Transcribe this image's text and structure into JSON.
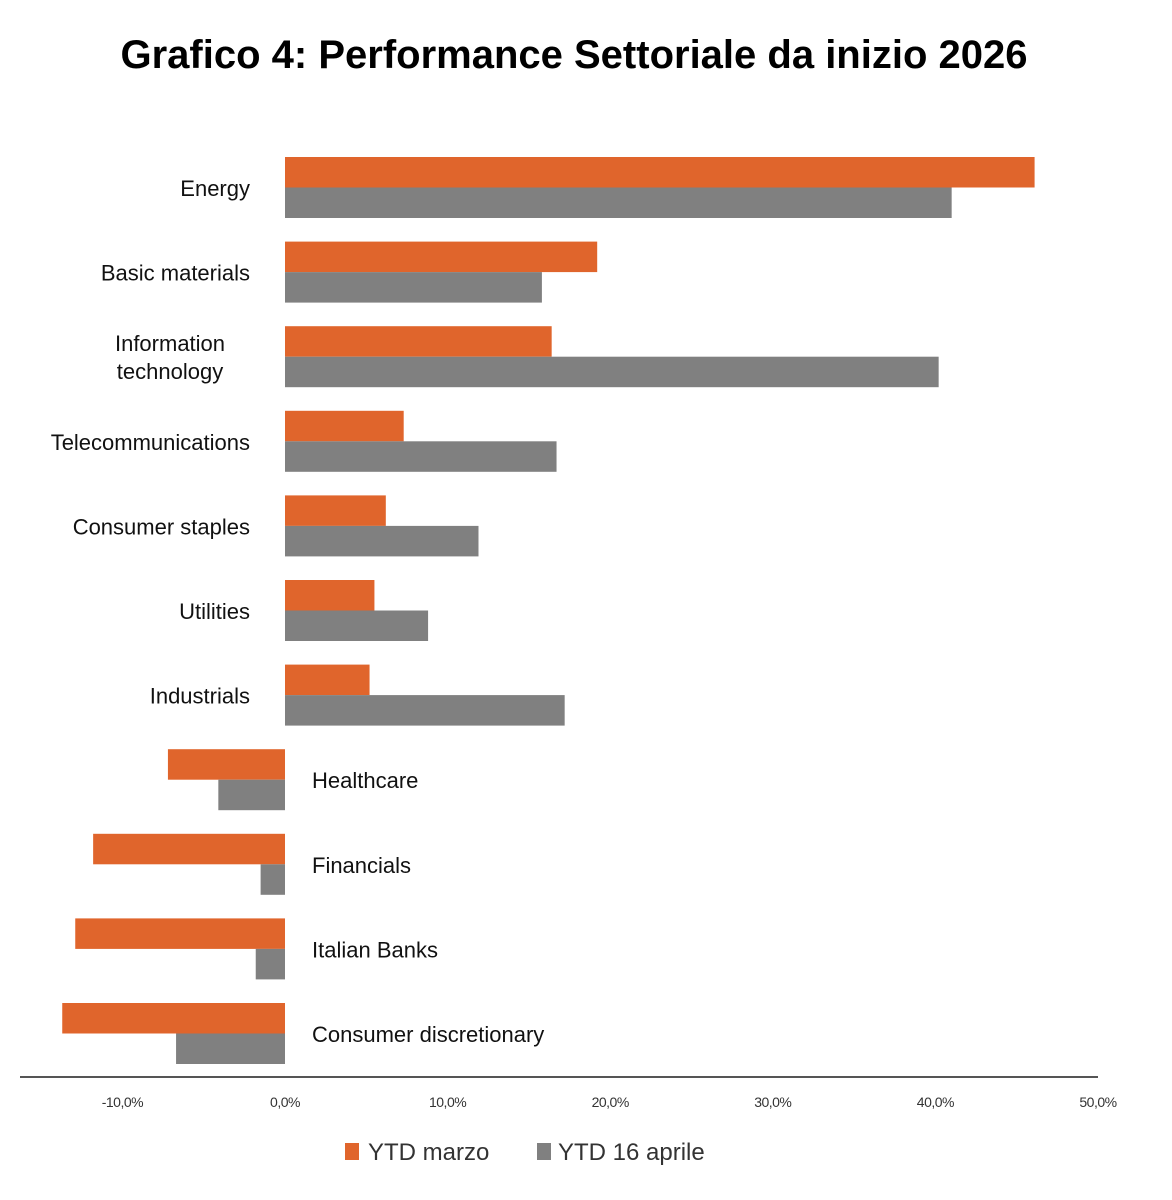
{
  "chart_data": {
    "type": "bar",
    "orientation": "horizontal",
    "title": "Grafico 4: Performance Settoriale da inizio 2026",
    "xlabel": "",
    "ylabel": "",
    "categories": [
      "Energy",
      "Basic materials",
      "Information technology",
      "Telecommunications",
      "Consumer staples",
      "Utilities",
      "Industrials",
      "Healthcare",
      "Financials",
      "Italian Banks",
      "Consumer discretionary"
    ],
    "category_lines": [
      [
        "Energy"
      ],
      [
        "Basic materials"
      ],
      [
        "Information",
        "technology"
      ],
      [
        "Telecommunications"
      ],
      [
        "Consumer staples"
      ],
      [
        "Utilities"
      ],
      [
        "Industrials"
      ],
      [
        "Healthcare"
      ],
      [
        "Financials"
      ],
      [
        "Italian Banks"
      ],
      [
        "Consumer discretionary"
      ]
    ],
    "series": [
      {
        "name": "YTD marzo",
        "color": "#E0652C",
        "values": [
          46.1,
          19.2,
          16.4,
          7.3,
          6.2,
          5.5,
          5.2,
          -7.2,
          -11.8,
          -12.9,
          -13.7
        ]
      },
      {
        "name": "YTD 16 aprile",
        "color": "#808080",
        "values": [
          41.0,
          15.8,
          40.2,
          16.7,
          11.9,
          8.8,
          17.2,
          -4.1,
          -1.5,
          -1.8,
          -6.7
        ]
      }
    ],
    "xlim": [
      -16.3,
      50
    ],
    "xticks": [
      -10,
      0,
      10,
      20,
      30,
      40,
      50
    ],
    "xtick_labels": [
      "-10,0%",
      "0,0%",
      "10,0%",
      "20,0%",
      "30,0%",
      "40,0%",
      "50,0%"
    ],
    "grid": false,
    "legend_position": "bottom"
  }
}
